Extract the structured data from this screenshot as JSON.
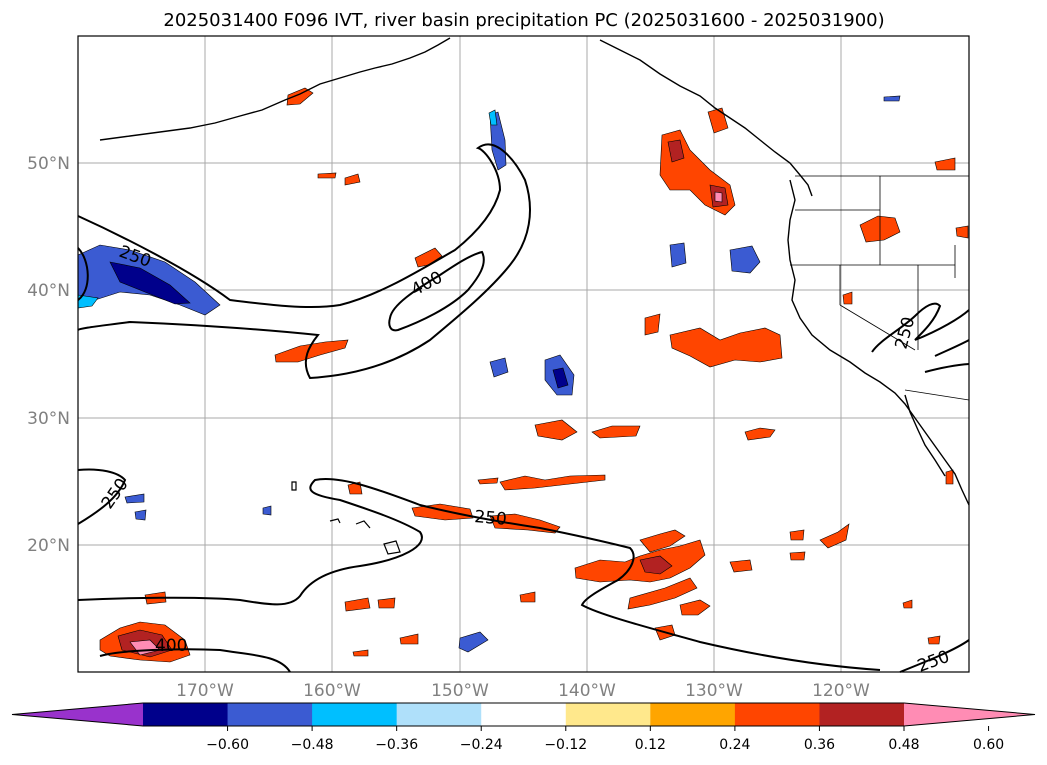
{
  "chart_data": {
    "type": "map",
    "title": "2025031400 F096 IVT, river basin precipitation PC (2025031600 - 2025031900)",
    "lon_range": [
      -180,
      -110
    ],
    "lat_range": [
      10,
      60
    ],
    "lat_ticks": [
      "50°N",
      "40°N",
      "30°N",
      "20°N"
    ],
    "lon_ticks": [
      "170°W",
      "160°W",
      "150°W",
      "140°W",
      "130°W",
      "120°W"
    ],
    "grid": true,
    "contour_labels": [
      "250",
      "400",
      "250",
      "250",
      "250",
      "400",
      "250"
    ],
    "colorbar": {
      "ticks": [
        "−0.60",
        "−0.48",
        "−0.36",
        "−0.24",
        "−0.12",
        "0.12",
        "0.24",
        "0.36",
        "0.48",
        "0.60"
      ],
      "colors": [
        "#9932cc",
        "#00008b",
        "#3b5bd2",
        "#00bfff",
        "#afe0fa",
        "#ffffff",
        "#ffe88c",
        "#ffa500",
        "#ff4500",
        "#b22222",
        "#ff8cb4"
      ]
    }
  }
}
